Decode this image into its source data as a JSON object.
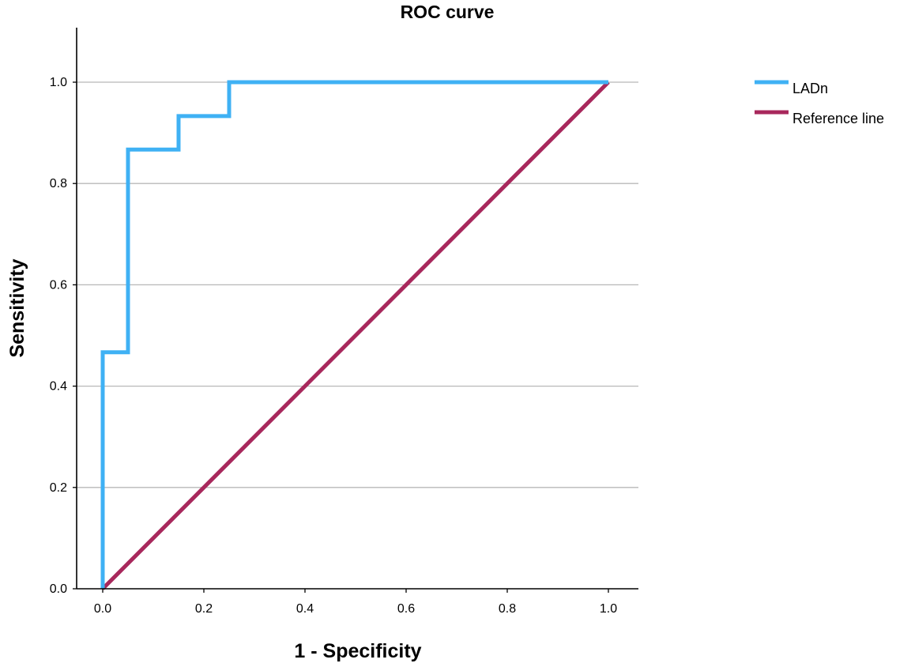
{
  "chart_data": {
    "type": "line",
    "title": "ROC curve",
    "xlabel": "1 - Specificity",
    "ylabel": "Sensitivity",
    "xlim": [
      0,
      1
    ],
    "ylim": [
      0,
      1.1
    ],
    "xticks": [
      "0.0",
      "0.2",
      "0.4",
      "0.6",
      "0.8",
      "1.0"
    ],
    "yticks": [
      "0.0",
      "0.2",
      "0.4",
      "0.6",
      "0.8",
      "1.0"
    ],
    "grid": "horizontal",
    "legend_position": "top-right",
    "series": [
      {
        "name": "LADn",
        "color": "#3fb1f4",
        "step": true,
        "x": [
          0.0,
          0.0,
          0.05,
          0.05,
          0.15,
          0.15,
          0.25,
          0.25,
          1.0
        ],
        "y": [
          0.0,
          0.467,
          0.467,
          0.867,
          0.867,
          0.933,
          0.933,
          1.0,
          1.0
        ]
      },
      {
        "name": "Reference line",
        "color": "#a8285c",
        "step": false,
        "x": [
          0.0,
          1.0
        ],
        "y": [
          0.0,
          1.0
        ]
      }
    ]
  }
}
